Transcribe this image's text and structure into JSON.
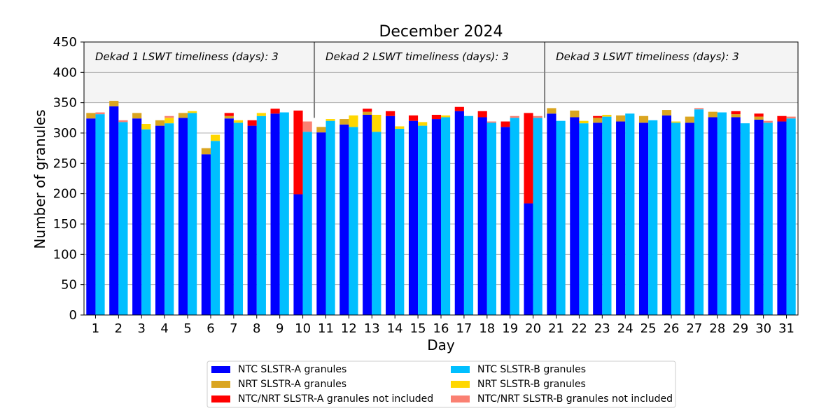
{
  "chart_data": {
    "type": "bar",
    "title": "December 2024",
    "xlabel": "Day",
    "ylabel": "Number of granules",
    "ylim": [
      0,
      450
    ],
    "yticks": [
      0,
      50,
      100,
      150,
      200,
      250,
      300,
      350,
      400,
      450
    ],
    "grid": true,
    "legend_position": "bottom-center",
    "categories": [
      "1",
      "2",
      "3",
      "4",
      "5",
      "6",
      "7",
      "8",
      "9",
      "10",
      "11",
      "12",
      "13",
      "14",
      "15",
      "16",
      "17",
      "18",
      "19",
      "20",
      "21",
      "22",
      "23",
      "24",
      "25",
      "26",
      "27",
      "28",
      "29",
      "30",
      "31"
    ],
    "background_band": {
      "from": 350,
      "to": 450
    },
    "annotations": [
      {
        "text": "Dekad 1 LSWT timeliness (days): 3",
        "start_day": 1,
        "end_day": 10
      },
      {
        "text": "Dekad 2 LSWT timeliness (days): 3",
        "start_day": 11,
        "end_day": 20
      },
      {
        "text": "Dekad 3 LSWT timeliness (days): 3",
        "start_day": 21,
        "end_day": 31
      }
    ],
    "series": [
      {
        "name": "NTC SLSTR-A granules",
        "group": "A",
        "color": "#0000ff",
        "values": [
          324,
          344,
          324,
          312,
          325,
          265,
          324,
          312,
          332,
          199,
          301,
          314,
          330,
          328,
          320,
          323,
          336,
          326,
          310,
          184,
          332,
          326,
          317,
          319,
          317,
          329,
          317,
          326,
          326,
          322,
          319
        ]
      },
      {
        "name": "NRT SLSTR-A granules",
        "group": "A",
        "color": "#daa520",
        "values": [
          9,
          9,
          9,
          9,
          8,
          10,
          4,
          0,
          0,
          0,
          9,
          9,
          5,
          0,
          0,
          0,
          0,
          0,
          0,
          0,
          9,
          11,
          8,
          10,
          11,
          9,
          10,
          9,
          5,
          5,
          0
        ]
      },
      {
        "name": "NTC/NRT SLSTR-A granules not included",
        "group": "A",
        "color": "#ff0000",
        "values": [
          0,
          0,
          0,
          0,
          0,
          0,
          5,
          9,
          8,
          138,
          0,
          0,
          5,
          8,
          9,
          7,
          7,
          10,
          9,
          149,
          0,
          0,
          3,
          0,
          0,
          0,
          0,
          0,
          5,
          5,
          9
        ]
      },
      {
        "name": "NTC SLSTR-B granules",
        "group": "B",
        "color": "#00bfff",
        "values": [
          331,
          318,
          306,
          316,
          333,
          287,
          317,
          328,
          334,
          302,
          320,
          310,
          302,
          307,
          312,
          326,
          328,
          317,
          325,
          325,
          320,
          316,
          327,
          332,
          321,
          317,
          339,
          334,
          316,
          317,
          324
        ]
      },
      {
        "name": "NRT SLSTR-B granules",
        "group": "B",
        "color": "#ffd700",
        "values": [
          0,
          0,
          9,
          9,
          3,
          10,
          4,
          5,
          0,
          0,
          3,
          19,
          28,
          4,
          6,
          3,
          0,
          0,
          0,
          0,
          0,
          4,
          3,
          0,
          0,
          2,
          0,
          0,
          0,
          0,
          0
        ]
      },
      {
        "name": "NTC/NRT SLSTR-B granules not included",
        "group": "B",
        "color": "#fa8072",
        "values": [
          3,
          3,
          0,
          3,
          0,
          0,
          0,
          0,
          0,
          17,
          0,
          0,
          0,
          0,
          0,
          0,
          0,
          2,
          3,
          3,
          0,
          0,
          0,
          0,
          0,
          0,
          2,
          0,
          0,
          3,
          3
        ]
      }
    ]
  }
}
